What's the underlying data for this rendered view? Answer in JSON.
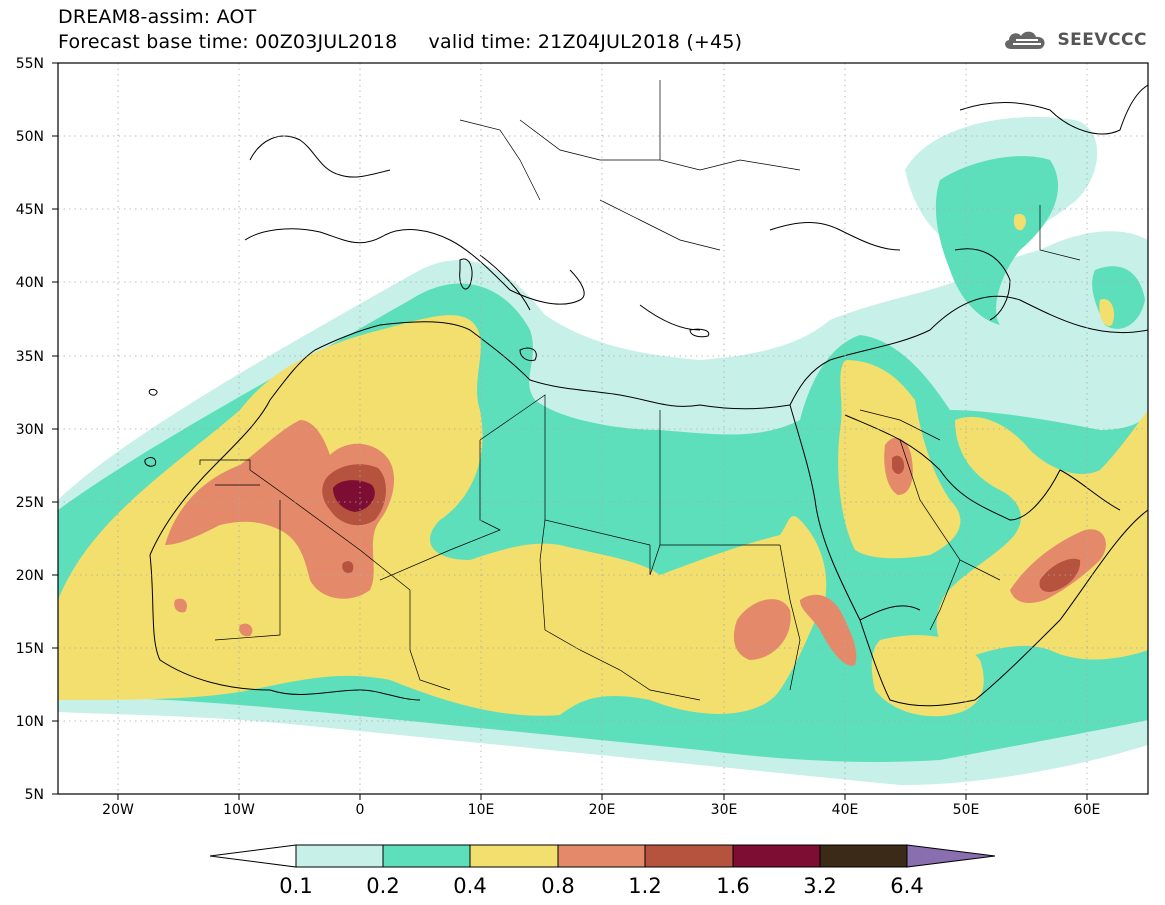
{
  "header": {
    "title": "DREAM8-assim: AOT",
    "subtitle": "Forecast base time: 00Z03JUL2018     valid time: 21Z04JUL2018 (+45)",
    "logo_text": "SEEVCCC"
  },
  "map": {
    "region": "North Africa, Middle East and Southern Europe",
    "lon_range": [
      -25,
      65
    ],
    "lat_range": [
      5,
      55
    ],
    "grid": true,
    "lat_labels": [
      "5N",
      "10N",
      "15N",
      "20N",
      "25N",
      "30N",
      "35N",
      "40N",
      "45N",
      "50N",
      "55N"
    ],
    "lon_labels": [
      "20W",
      "10W",
      "0",
      "10E",
      "20E",
      "30E",
      "40E",
      "50E",
      "60E"
    ],
    "layers": [
      {
        "name": "aot-0.1-0.2",
        "color": "#c6f0e8"
      },
      {
        "name": "aot-0.2-0.4",
        "color": "#5ddfbb"
      },
      {
        "name": "aot-0.4-0.8",
        "color": "#f2df6d"
      },
      {
        "name": "aot-0.8-1.2",
        "color": "#e48a6a"
      },
      {
        "name": "aot-1.2-1.6",
        "color": "#b5533e"
      },
      {
        "name": "aot-1.6-3.2",
        "color": "#7e0d33"
      }
    ]
  },
  "legend": {
    "labels": [
      "0.1",
      "0.2",
      "0.4",
      "0.8",
      "1.2",
      "1.6",
      "3.2",
      "6.4"
    ],
    "colors": [
      "#ffffff",
      "#c6f0e8",
      "#5ddfbb",
      "#f2df6d",
      "#e48a6a",
      "#b5533e",
      "#7e0d33",
      "#3b2a17",
      "#8a6fb0"
    ]
  }
}
